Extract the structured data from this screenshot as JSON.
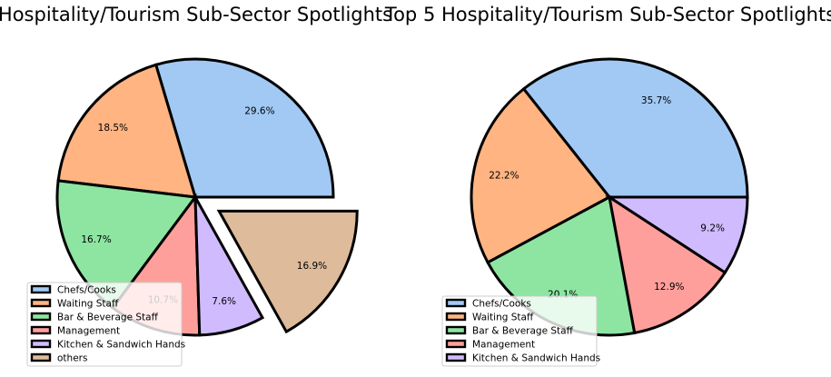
{
  "chart_data": [
    {
      "type": "pie",
      "title": "Hospitality/Tourism Sub-Sector Spotlights",
      "categories": [
        "Chefs/Cooks",
        "Waiting Staff",
        "Bar & Beverage Staff",
        "Management",
        "Kitchen & Sandwich Hands",
        "others"
      ],
      "values": [
        29.6,
        18.5,
        16.7,
        10.7,
        7.6,
        16.9
      ],
      "labels": [
        "29.6%",
        "18.5%",
        "16.7%",
        "10.7%",
        "7.6%",
        "16.9%"
      ],
      "colors": [
        "#a1c9f4",
        "#ffb482",
        "#8de5a1",
        "#ff9f9b",
        "#d0bbff",
        "#debb9b"
      ],
      "explode": [
        0,
        0,
        0,
        0,
        0,
        0.2
      ],
      "start_angle_deg": 0,
      "legend_position": "lower-left"
    },
    {
      "type": "pie",
      "title": "Top 5 Hospitality/Tourism Sub-Sector Spotlights",
      "categories": [
        "Chefs/Cooks",
        "Waiting Staff",
        "Bar & Beverage Staff",
        "Management",
        "Kitchen & Sandwich Hands"
      ],
      "values": [
        35.7,
        22.2,
        20.1,
        12.9,
        9.2
      ],
      "labels": [
        "35.7%",
        "22.2%",
        "20.1%",
        "12.9%",
        "9.2%"
      ],
      "colors": [
        "#a1c9f4",
        "#ffb482",
        "#8de5a1",
        "#ff9f9b",
        "#d0bbff"
      ],
      "explode": [
        0,
        0,
        0,
        0,
        0
      ],
      "start_angle_deg": 0,
      "legend_position": "lower-left"
    }
  ]
}
